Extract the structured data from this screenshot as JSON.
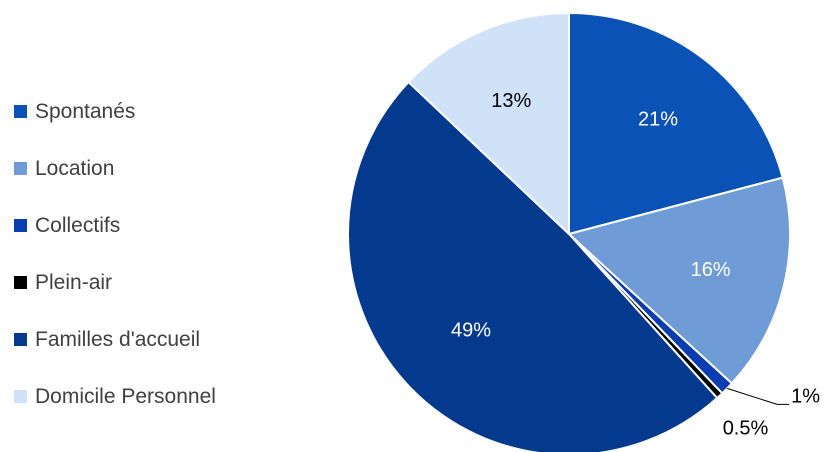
{
  "chart_data": {
    "type": "pie",
    "title": "",
    "legend_position": "left",
    "slices": [
      {
        "label": "Spontanés",
        "value": 21,
        "display": "21%",
        "color": "#0b52b6",
        "label_color": "#ffffff"
      },
      {
        "label": "Location",
        "value": 16,
        "display": "16%",
        "color": "#6f9bd6",
        "label_color": "#ffffff"
      },
      {
        "label": "Collectifs",
        "value": 1,
        "display": "1%",
        "color": "#0a3db0",
        "label_color": "#000000",
        "label_outside": true
      },
      {
        "label": "Plein-air",
        "value": 0.5,
        "display": "0.5%",
        "color": "#000000",
        "label_color": "#000000",
        "label_outside": true
      },
      {
        "label": "Familles d'accueil",
        "value": 49,
        "display": "49%",
        "color": "#033a8e",
        "label_color": "#ffffff"
      },
      {
        "label": "Domicile Personnel",
        "value": 13,
        "display": "13%",
        "color": "#d0e2f8",
        "label_color": "#000000"
      }
    ]
  }
}
